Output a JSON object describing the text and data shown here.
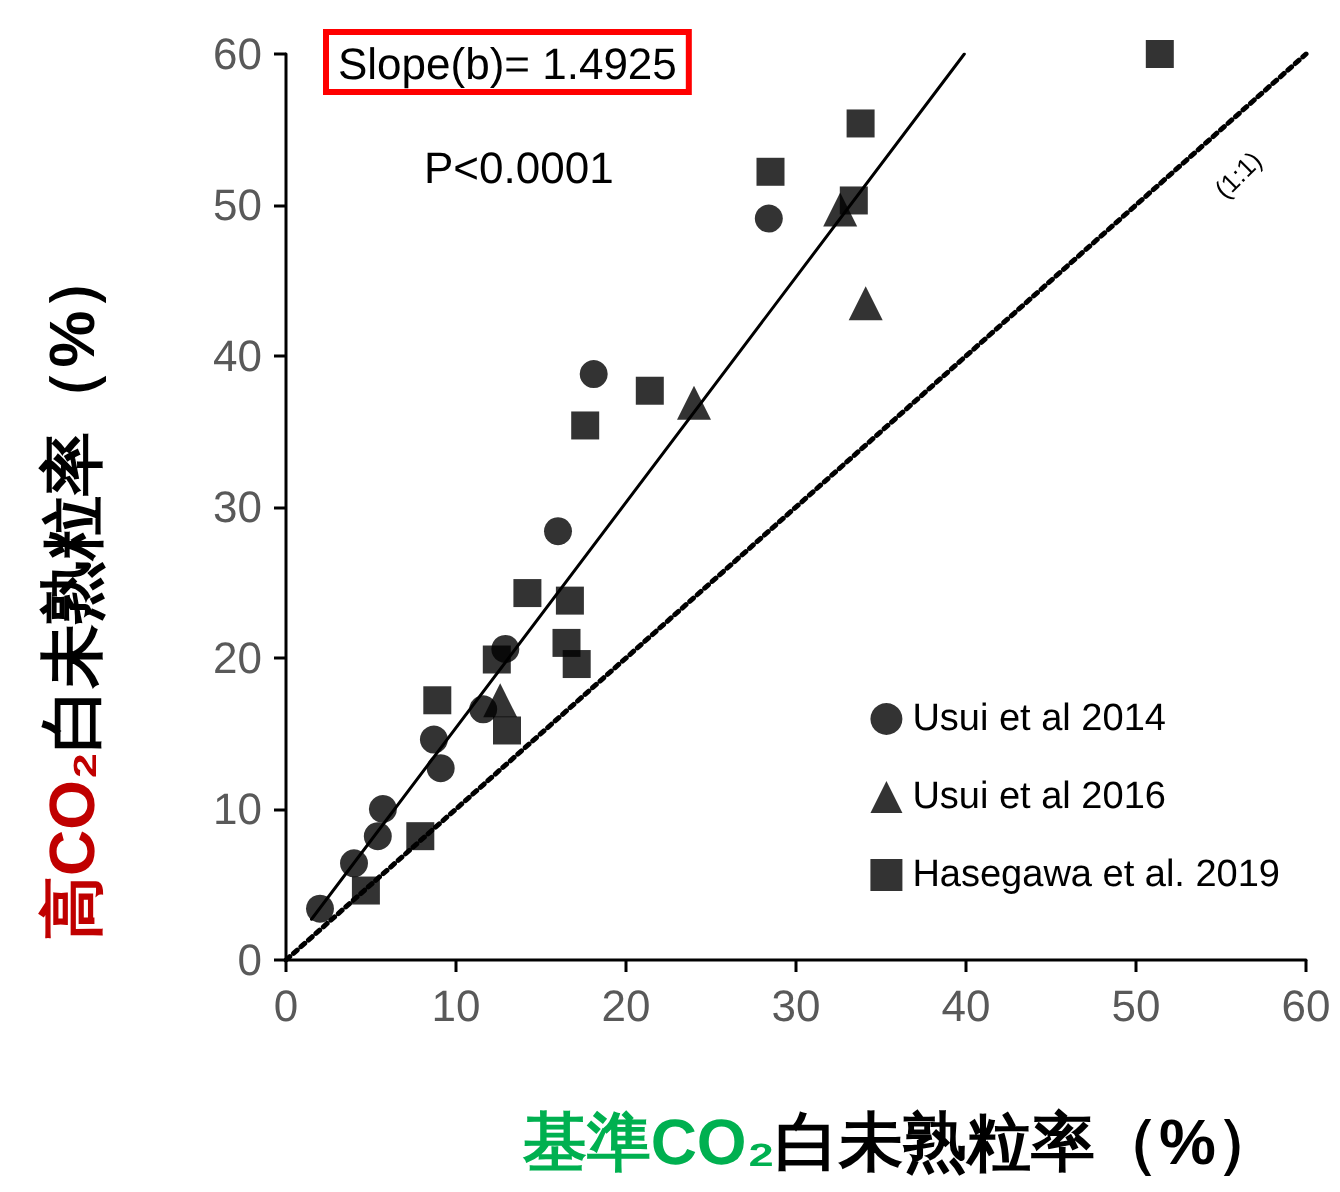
{
  "chart_data": {
    "type": "scatter",
    "xlabel": "基準CO₂白未熟粒率（%）",
    "ylabel": "高CO₂白未熟粒率（%）",
    "annotations": [
      "Slope(b)= 1.4925",
      "P<0.0001",
      "(1:1)"
    ],
    "xlim": [
      0,
      60
    ],
    "xticks": [
      0,
      10,
      20,
      30,
      40,
      50,
      60
    ],
    "ylim": [
      0,
      60
    ],
    "yticks": [
      0,
      10,
      20,
      30,
      40,
      50,
      60
    ],
    "grid": false,
    "legend": "bottom right",
    "series": [
      {
        "name": "Usui et al 2014",
        "color": "#000000",
        "marker": "circle",
        "x": [
          2.0,
          4.0,
          5.4,
          5.7,
          9.1,
          8.7,
          11.6,
          12.9,
          16.0,
          18.1,
          28.4
        ],
        "values": [
          3.4,
          6.4,
          8.2,
          10.0,
          12.7,
          14.6,
          16.6,
          20.6,
          28.4,
          38.8,
          49.1
        ]
      },
      {
        "name": "Usui et al 2016",
        "color": "#000000",
        "marker": "triangle",
        "x": [
          12.6,
          24.0,
          32.6,
          34.1
        ],
        "values": [
          17.2,
          36.9,
          49.7,
          43.5
        ]
      },
      {
        "name": "Hasegawa et al. 2019",
        "color": "#000000",
        "marker": "square",
        "x": [
          4.7,
          7.9,
          8.9,
          12.4,
          12.7,
          13.0,
          14.2,
          16.7,
          16.5,
          17.1,
          17.6,
          21.4,
          28.5,
          33.8,
          33.4,
          51.4
        ],
        "values": [
          4.6,
          8.2,
          17.2,
          19.9,
          null,
          15.2,
          24.3,
          23.8,
          21.0,
          19.6,
          35.4,
          37.7,
          52.2,
          55.4,
          50.3,
          60.0
        ]
      },
      {
        "type": "line",
        "color": "#000000",
        "marker": "none",
        "line_style": "solid",
        "x": [
          1.5,
          39.9
        ],
        "values": [
          2.7,
          60.0
        ]
      },
      {
        "type": "line",
        "color": "#000000",
        "marker": "none",
        "line_style": "dotted",
        "x": [
          0,
          60
        ],
        "values": [
          0,
          60
        ]
      }
    ]
  }
}
